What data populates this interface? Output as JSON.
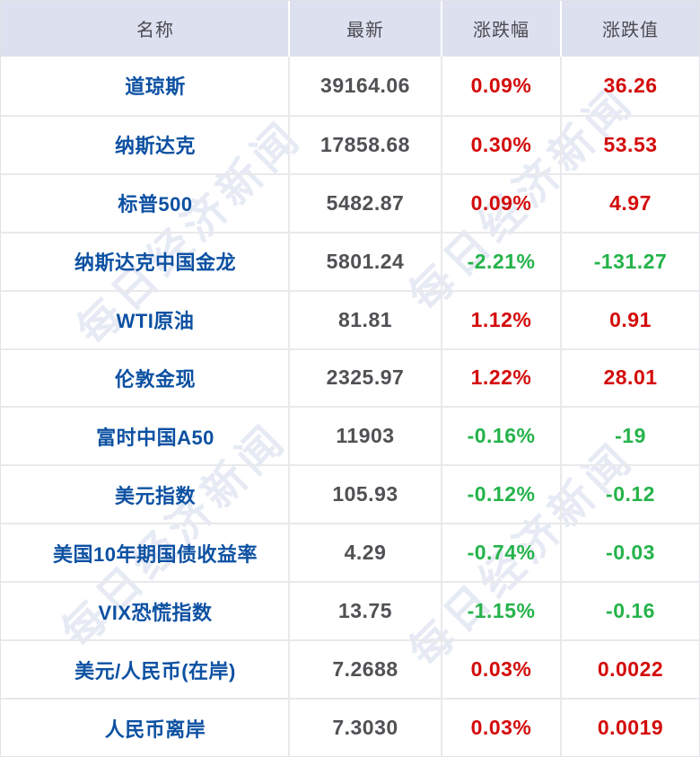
{
  "watermark": {
    "text": "每日经济新闻"
  },
  "colors": {
    "up": "#d40b0b",
    "down": "#25b34b",
    "name_blue": "#0d51a2",
    "header_bg": "#dde0ee",
    "value_grey": "#515155",
    "divider": "#e9e9ec"
  },
  "chart_data": {
    "type": "table",
    "columns": [
      "名称",
      "最新",
      "涨跌幅",
      "涨跌值"
    ],
    "rows": [
      {
        "name": "道琼斯",
        "last": "39164.06",
        "pct": "0.09%",
        "chg": "36.26",
        "dir": "up"
      },
      {
        "name": "纳斯达克",
        "last": "17858.68",
        "pct": "0.30%",
        "chg": "53.53",
        "dir": "up"
      },
      {
        "name": "标普500",
        "last": "5482.87",
        "pct": "0.09%",
        "chg": "4.97",
        "dir": "up"
      },
      {
        "name": "纳斯达克中国金龙",
        "last": "5801.24",
        "pct": "-2.21%",
        "chg": "-131.27",
        "dir": "down"
      },
      {
        "name": "WTI原油",
        "last": "81.81",
        "pct": "1.12%",
        "chg": "0.91",
        "dir": "up"
      },
      {
        "name": "伦敦金现",
        "last": "2325.97",
        "pct": "1.22%",
        "chg": "28.01",
        "dir": "up"
      },
      {
        "name": "富时中国A50",
        "last": "11903",
        "pct": "-0.16%",
        "chg": "-19",
        "dir": "down"
      },
      {
        "name": "美元指数",
        "last": "105.93",
        "pct": "-0.12%",
        "chg": "-0.12",
        "dir": "down"
      },
      {
        "name": "美国10年期国债收益率",
        "last": "4.29",
        "pct": "-0.74%",
        "chg": "-0.03",
        "dir": "down"
      },
      {
        "name": "VIX恐慌指数",
        "last": "13.75",
        "pct": "-1.15%",
        "chg": "-0.16",
        "dir": "down"
      },
      {
        "name": "美元/人民币(在岸)",
        "last": "7.2688",
        "pct": "0.03%",
        "chg": "0.0022",
        "dir": "up"
      },
      {
        "name": "人民币离岸",
        "last": "7.3030",
        "pct": "0.03%",
        "chg": "0.0019",
        "dir": "up"
      }
    ]
  }
}
